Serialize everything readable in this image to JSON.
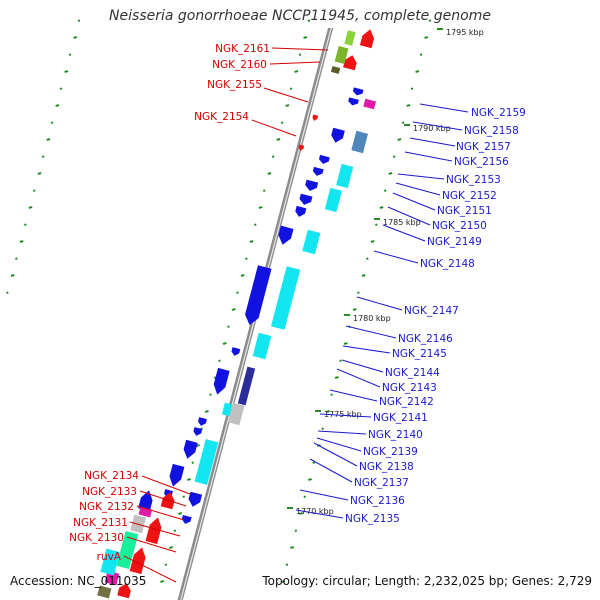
{
  "header": {
    "title": "Neisseria gonorrhoeae NCCP11945, complete genome"
  },
  "footer": {
    "accession": "Accession: NC_011035",
    "summary": "Topology: circular; Length: 2,232,025 bp; Genes: 2,729"
  },
  "scale_ticks": [
    "1795 kbp",
    "1790 kbp",
    "1785 kbp",
    "1780 kbp",
    "1775 kbp",
    "1770 kbp"
  ],
  "colors": {
    "forward_labels": "#d40000",
    "reverse_labels": "#1a1acc",
    "markers": "#1a8a1a"
  },
  "genes_left": [
    "NGK_2161",
    "NGK_2160",
    "NGK_2155",
    "NGK_2154",
    "NGK_2134",
    "NGK_2133",
    "NGK_2132",
    "NGK_2131",
    "NGK_2130",
    "ruvA"
  ],
  "genes_right": [
    "NGK_2159",
    "NGK_2158",
    "NGK_2157",
    "NGK_2156",
    "NGK_2153",
    "NGK_2152",
    "NGK_2151",
    "NGK_2150",
    "NGK_2149",
    "NGK_2148",
    "NGK_2147",
    "NGK_2146",
    "NGK_2145",
    "NGK_2144",
    "NGK_2143",
    "NGK_2142",
    "NGK_2141",
    "NGK_2140",
    "NGK_2139",
    "NGK_2138",
    "NGK_2137",
    "NGK_2136",
    "NGK_2135"
  ]
}
